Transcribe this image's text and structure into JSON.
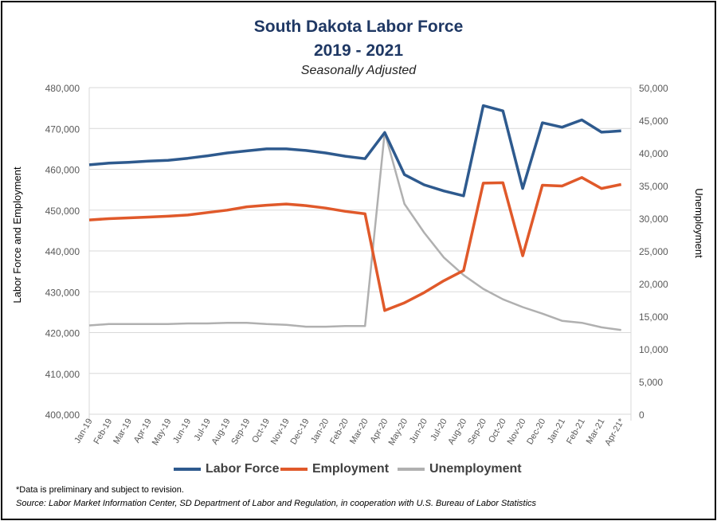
{
  "chart_data": {
    "type": "line",
    "title": "South Dakota Labor Force",
    "title_line2": "2019 - 2021",
    "subtitle": "Seasonally Adjusted",
    "ylabel": "Labor Force and Employment",
    "y2label": "Unemployment",
    "ylim": [
      400000,
      480000
    ],
    "y2lim": [
      0,
      50000
    ],
    "yticks": [
      "400,000",
      "410,000",
      "420,000",
      "430,000",
      "440,000",
      "450,000",
      "460,000",
      "470,000",
      "480,000"
    ],
    "y2ticks": [
      "0",
      "5,000",
      "10,000",
      "15,000",
      "20,000",
      "25,000",
      "30,000",
      "35,000",
      "40,000",
      "45,000",
      "50,000"
    ],
    "categories": [
      "Jan-19",
      "Feb-19",
      "Mar-19",
      "Apr-19",
      "May-19",
      "Jun-19",
      "Jul-19",
      "Aug-19",
      "Sep-19",
      "Oct-19",
      "Nov-19",
      "Dec-19",
      "Jan-20",
      "Feb-20",
      "Mar-20",
      "Apr-20",
      "May-20",
      "Jun-20",
      "Jul-20",
      "Aug-20",
      "Sep-20",
      "Oct-20",
      "Nov-20",
      "Dec-20",
      "Jan-21",
      "Feb-21",
      "Mar-21",
      "Apr-21*"
    ],
    "grid": true,
    "legend_position": "bottom",
    "series": [
      {
        "name": "Labor Force",
        "axis": "left",
        "color": "#2e5a8e",
        "values": [
          461100,
          461500,
          461700,
          462000,
          462200,
          462700,
          463300,
          464000,
          464500,
          465000,
          465000,
          464600,
          464000,
          463200,
          462600,
          469000,
          458700,
          456200,
          454700,
          453500,
          475600,
          474300,
          455300,
          471400,
          470300,
          472100,
          469100,
          469400
        ]
      },
      {
        "name": "Employment",
        "axis": "left",
        "color": "#e0592a",
        "values": [
          447600,
          447900,
          448100,
          448300,
          448500,
          448800,
          449400,
          450000,
          450800,
          451200,
          451500,
          451100,
          450500,
          449700,
          449100,
          425400,
          427300,
          429800,
          432700,
          435200,
          456600,
          456700,
          438800,
          456100,
          455900,
          458000,
          455300,
          456300
        ]
      },
      {
        "name": "Unemployment",
        "axis": "right",
        "color": "#b0b0b0",
        "values": [
          13600,
          13800,
          13800,
          13800,
          13800,
          13900,
          13900,
          14000,
          14000,
          13800,
          13700,
          13400,
          13400,
          13500,
          13500,
          43200,
          32200,
          27800,
          24000,
          21300,
          19200,
          17600,
          16400,
          15400,
          14300,
          14000,
          13300,
          12900
        ]
      }
    ]
  },
  "footnotes": {
    "note": "*Data is preliminary and subject to revision.",
    "source": "Source:  Labor Market Information Center, SD Department of Labor and Regulation, in cooperation with U.S. Bureau of Labor Statistics"
  }
}
